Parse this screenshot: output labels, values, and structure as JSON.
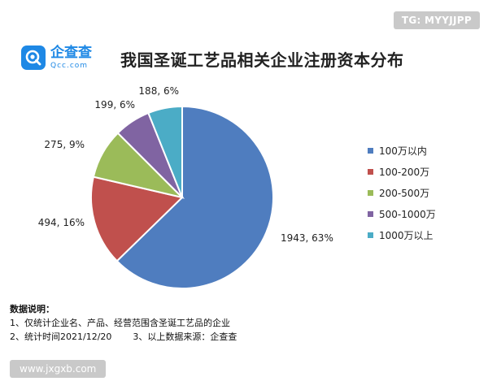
{
  "badge": "TG: MYYJJPP",
  "logo": {
    "cn": "企查查",
    "en": "Qcc.com"
  },
  "chart_data": {
    "type": "pie",
    "title": "我国圣诞工艺品相关企业注册资本分布",
    "legend_position": "right",
    "slices": [
      {
        "name": "100万以内",
        "value": 1943,
        "percent": "63%",
        "label": "1943, 63%",
        "color": "#4f7dbf"
      },
      {
        "name": "100-200万",
        "value": 494,
        "percent": "16%",
        "label": "494, 16%",
        "color": "#c0504d"
      },
      {
        "name": "200-500万",
        "value": 275,
        "percent": "9%",
        "label": "275, 9%",
        "color": "#9bbb59"
      },
      {
        "name": "500-1000万",
        "value": 199,
        "percent": "6%",
        "label": "199, 6%",
        "color": "#8064a2"
      },
      {
        "name": "1000万以上",
        "value": 188,
        "percent": "6%",
        "label": "188, 6%",
        "color": "#4bacc6"
      }
    ]
  },
  "notes": {
    "heading": "数据说明：",
    "line1": "1、仅统计企业名、产品、经营范围含圣诞工艺品的企业",
    "line2a": "2、统计时间2021/12/20",
    "line2b": "3、以上数据来源：企查查"
  },
  "watermark": "www.jxgxb.com"
}
